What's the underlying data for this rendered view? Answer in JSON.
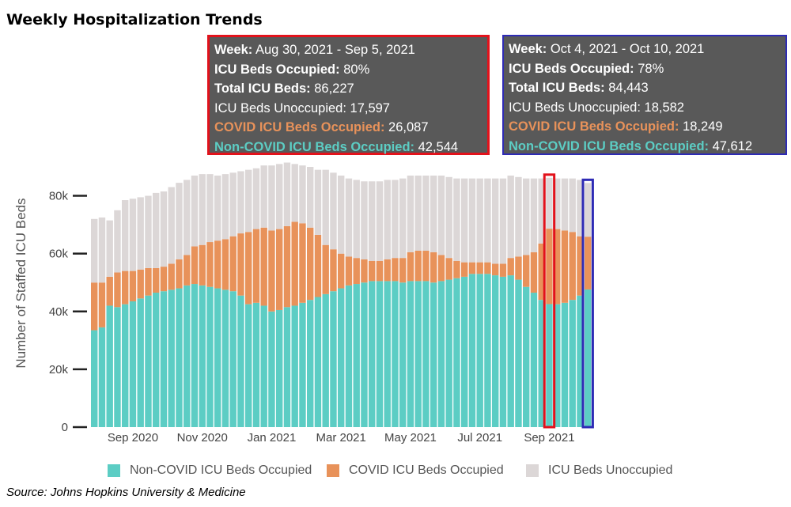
{
  "title": "Weekly Hospitalization Trends",
  "source": "Source:  Johns Hopkins University & Medicine",
  "colors": {
    "non_covid": "#5ccdc4",
    "covid": "#e8925a",
    "unoccupied": "#dcd7d7",
    "tooltip_bg": "#595959",
    "highlight_a": "#e2121b",
    "highlight_b": "#2e2bb5"
  },
  "tooltips": [
    {
      "week_label": "Week:",
      "week": "Aug 30, 2021 - Sep 5, 2021",
      "occ_label": "ICU Beds Occupied:",
      "occ": "80%",
      "total_label": "Total ICU Beds:",
      "total": "86,227",
      "unocc_label": "ICU Beds Unoccupied:",
      "unocc": "17,597",
      "covid_label": "COVID ICU Beds Occupied:",
      "covid": "26,087",
      "noncovid_label": "Non-COVID ICU Beds Occupied:",
      "noncovid": "42,544"
    },
    {
      "week_label": "Week:",
      "week": "Oct 4, 2021 - Oct 10, 2021",
      "occ_label": "ICU Beds Occupied:",
      "occ": "78%",
      "total_label": "Total ICU Beds:",
      "total": "84,443",
      "unocc_label": "ICU Beds Unoccupied:",
      "unocc": "18,582",
      "covid_label": "COVID ICU Beds Occupied:",
      "covid": "18,249",
      "noncovid_label": "Non-COVID ICU Beds Occupied:",
      "noncovid": "47,612"
    }
  ],
  "legend": [
    {
      "label": "Non-COVID ICU Beds Occupied",
      "color": "#5ccdc4"
    },
    {
      "label": "COVID ICU Beds Occupied",
      "color": "#e8925a"
    },
    {
      "label": "ICU Beds Unoccupied",
      "color": "#dcd7d7"
    }
  ],
  "chart_data": {
    "type": "bar",
    "stacked": true,
    "ylabel": "Number of Staffed ICU Beds",
    "ylim": [
      0,
      90000
    ],
    "yticks": [
      0,
      20000,
      40000,
      60000,
      80000
    ],
    "ytick_labels": [
      "0",
      "20k",
      "40k",
      "60k",
      "80k"
    ],
    "xtick_labels": [
      "Sep 2020",
      "Nov 2020",
      "Jan 2021",
      "Mar 2021",
      "May 2021",
      "Jul 2021",
      "Sep 2021"
    ],
    "xtick_bar_index": [
      5,
      14,
      23,
      32,
      41,
      50,
      59
    ],
    "highlighted_bars": [
      59,
      64
    ],
    "series": [
      {
        "name": "Non-COVID ICU Beds Occupied",
        "values": [
          33500,
          34500,
          42000,
          41500,
          42500,
          43500,
          44500,
          45500,
          46500,
          47000,
          47500,
          48000,
          49000,
          49500,
          49000,
          48500,
          48000,
          47500,
          47000,
          45500,
          42500,
          43000,
          42000,
          40000,
          40500,
          41500,
          42000,
          43000,
          44000,
          45000,
          46000,
          47000,
          48000,
          49000,
          49500,
          50000,
          50500,
          50500,
          50500,
          50500,
          50000,
          50500,
          50500,
          50500,
          50000,
          50500,
          51000,
          51500,
          52000,
          53000,
          53000,
          53000,
          52500,
          52000,
          52500,
          51000,
          48500,
          46500,
          44000,
          42544,
          42500,
          43000,
          44000,
          45500,
          47612
        ]
      },
      {
        "name": "COVID ICU Beds Occupied",
        "values": [
          16500,
          15500,
          10000,
          12000,
          11500,
          10500,
          10000,
          9500,
          8500,
          8500,
          9000,
          10000,
          10500,
          13000,
          14000,
          15500,
          16500,
          17500,
          19000,
          21500,
          25000,
          25500,
          27000,
          28000,
          28000,
          28000,
          29000,
          27500,
          25000,
          21500,
          17000,
          14500,
          12000,
          10000,
          9000,
          8000,
          7000,
          7000,
          7500,
          8000,
          8500,
          10000,
          10500,
          10500,
          10500,
          9000,
          7500,
          6000,
          5000,
          4000,
          4000,
          4000,
          4000,
          4500,
          6000,
          8000,
          11000,
          14000,
          19500,
          26087,
          26000,
          25000,
          23500,
          20500,
          18249
        ]
      },
      {
        "name": "ICU Beds Unoccupied",
        "values": [
          22000,
          22500,
          19500,
          21500,
          24500,
          25000,
          25000,
          25000,
          26000,
          26000,
          26500,
          26500,
          26000,
          24500,
          24500,
          23500,
          22500,
          22500,
          22000,
          21500,
          21500,
          21000,
          21500,
          22500,
          22500,
          22000,
          20000,
          20000,
          21000,
          22500,
          26000,
          26500,
          27000,
          27000,
          27000,
          27000,
          27500,
          27500,
          27500,
          27000,
          27500,
          26500,
          26000,
          26000,
          26500,
          27500,
          28000,
          28500,
          29000,
          29000,
          29000,
          29000,
          29500,
          29500,
          28500,
          27500,
          26500,
          25500,
          22500,
          17597,
          17500,
          18000,
          18500,
          19500,
          18582
        ]
      }
    ]
  }
}
